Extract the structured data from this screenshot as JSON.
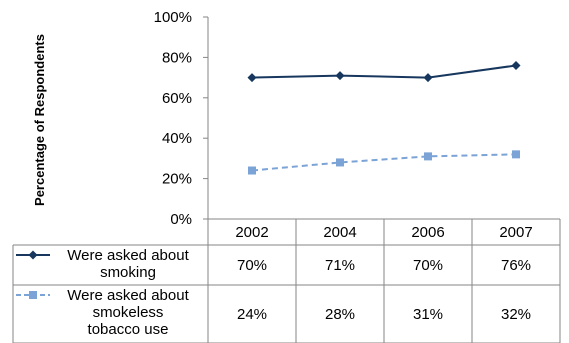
{
  "chart_data": {
    "type": "line",
    "categories": [
      "2002",
      "2004",
      "2006",
      "2007"
    ],
    "ylabel": "Percentage of Respondents",
    "ylim": [
      0,
      100
    ],
    "yticks": [
      "0%",
      "20%",
      "40%",
      "60%",
      "80%",
      "100%"
    ],
    "grid": false,
    "legend_placement": "data-table-left",
    "series": [
      {
        "name_lines": [
          "Were asked about",
          "smoking"
        ],
        "values": [
          70,
          71,
          70,
          76
        ],
        "labels": [
          "70%",
          "71%",
          "70%",
          "76%"
        ],
        "color": "#17375e",
        "marker": "diamond",
        "dash": "solid"
      },
      {
        "name_lines": [
          "Were asked about",
          "smokeless",
          "tobacco use"
        ],
        "values": [
          24,
          28,
          31,
          32
        ],
        "labels": [
          "24%",
          "28%",
          "31%",
          "32%"
        ],
        "color": "#7ba3d6",
        "marker": "square",
        "dash": "dashed"
      }
    ]
  }
}
